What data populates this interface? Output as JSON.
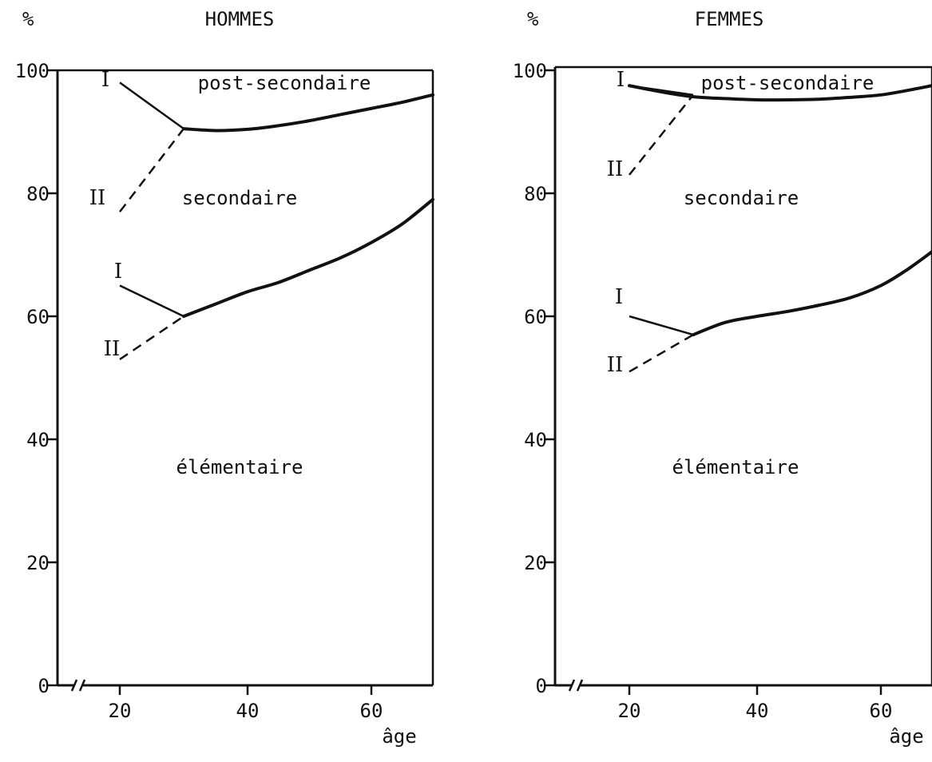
{
  "chart_data": [
    {
      "type": "line",
      "title": "HOMMES",
      "ylabel": "%",
      "xlabel": "âge",
      "xlim": [
        10,
        70
      ],
      "ylim": [
        0,
        100
      ],
      "x_ticks": [
        20,
        40,
        60
      ],
      "y_ticks": [
        0,
        20,
        40,
        60,
        80,
        100
      ],
      "x_axis_break": true,
      "regions": [
        "post-secondaire",
        "secondaire",
        "élémentaire"
      ],
      "series": [
        {
          "x": [
            30,
            35,
            40,
            45,
            50,
            55,
            60,
            65,
            70
          ],
          "values": [
            90.5,
            90.2,
            90.4,
            91,
            91.8,
            92.8,
            93.8,
            94.8,
            96
          ]
        },
        {
          "x": [
            30,
            35,
            40,
            45,
            50,
            55,
            60,
            65,
            70
          ],
          "values": [
            60,
            62,
            64,
            65.5,
            67.5,
            69.5,
            72,
            75,
            79
          ]
        }
      ],
      "branches": [
        {
          "label": "I",
          "style": "solid",
          "x": [
            20,
            30
          ],
          "values": [
            98,
            90.5
          ]
        },
        {
          "label": "II",
          "style": "dashed",
          "x": [
            20,
            30
          ],
          "values": [
            77,
            90.5
          ]
        },
        {
          "label": "I",
          "style": "solid",
          "x": [
            20,
            30
          ],
          "values": [
            65,
            60
          ]
        },
        {
          "label": "II",
          "style": "dashed",
          "x": [
            20,
            30
          ],
          "values": [
            53,
            60
          ]
        }
      ]
    },
    {
      "type": "line",
      "title": "FEMMES",
      "ylabel": "%",
      "xlabel": "âge",
      "xlim": [
        10,
        70
      ],
      "ylim": [
        0,
        100
      ],
      "x_ticks": [
        20,
        40,
        60
      ],
      "y_ticks": [
        0,
        20,
        40,
        60,
        80,
        100
      ],
      "x_axis_break": true,
      "regions": [
        "post-secondaire",
        "secondaire",
        "élémentaire"
      ],
      "series": [
        {
          "x": [
            20,
            25,
            30,
            35,
            40,
            45,
            50,
            55,
            60,
            65,
            70
          ],
          "values": [
            97.5,
            96.5,
            95.7,
            95.4,
            95.2,
            95.2,
            95.3,
            95.6,
            96,
            96.7,
            97.5
          ]
        },
        {
          "x": [
            30,
            35,
            40,
            45,
            50,
            55,
            60,
            65,
            70
          ],
          "values": [
            57,
            59,
            60,
            60.8,
            61.8,
            63,
            65,
            67.5,
            70.5
          ]
        }
      ],
      "branches": [
        {
          "label": "I",
          "style": "solid",
          "x": [
            20,
            30
          ],
          "values": [
            97.5,
            96
          ]
        },
        {
          "label": "II",
          "style": "dashed",
          "x": [
            20,
            30
          ],
          "values": [
            83,
            96
          ]
        },
        {
          "label": "I",
          "style": "solid",
          "x": [
            20,
            30
          ],
          "values": [
            60,
            57
          ]
        },
        {
          "label": "II",
          "style": "dashed",
          "x": [
            20,
            30
          ],
          "values": [
            51,
            57
          ]
        }
      ]
    }
  ]
}
